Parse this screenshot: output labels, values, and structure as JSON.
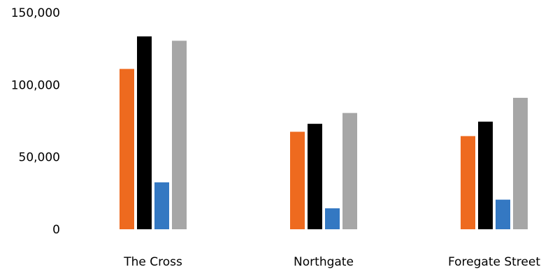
{
  "chart_data": {
    "type": "bar",
    "title": "",
    "xlabel": "",
    "ylabel": "",
    "categories": [
      "The Cross",
      "Northgate",
      "Foregate Street"
    ],
    "series": [
      {
        "values": [
          111000,
          67500,
          64500
        ],
        "color": "#ee6a1f"
      },
      {
        "values": [
          133500,
          73000,
          74500
        ],
        "color": "#000000"
      },
      {
        "values": [
          32500,
          14500,
          20500
        ],
        "color": "#3478c2"
      },
      {
        "values": [
          130500,
          80500,
          91000
        ],
        "color": "#a6a6a6"
      }
    ],
    "ylim": [
      0,
      150000
    ],
    "yticks": [
      0,
      50000,
      100000,
      150000
    ],
    "ytick_labels": [
      "0",
      "50,000",
      "100,000",
      "150,000"
    ],
    "grid": false,
    "legend": "none"
  }
}
